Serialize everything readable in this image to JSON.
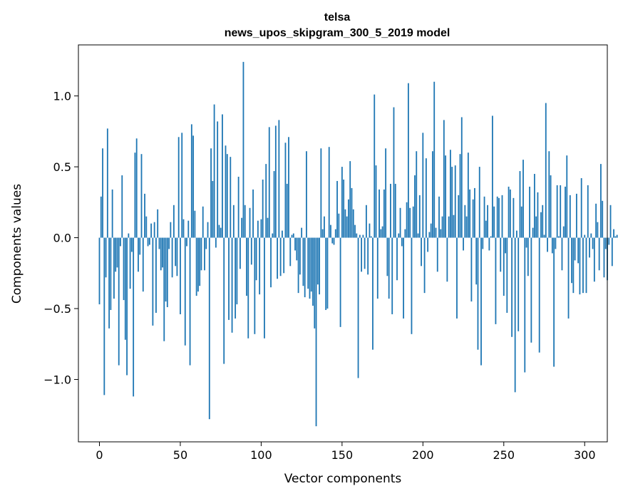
{
  "chart_data": {
    "type": "bar",
    "title": "telsa",
    "subtitle": "news_upos_skipgram_300_5_2019 model",
    "xlabel": "Vector components",
    "ylabel": "Components values",
    "xlim": [
      -13,
      314
    ],
    "ylim": [
      -1.44,
      1.36
    ],
    "xticks": [
      0,
      50,
      100,
      150,
      200,
      250,
      300
    ],
    "xtick_labels": [
      "0",
      "50",
      "100",
      "150",
      "200",
      "250",
      "300"
    ],
    "yticks": [
      -1.0,
      -0.5,
      0.0,
      0.5,
      1.0
    ],
    "ytick_labels": [
      "−1.0",
      "−0.5",
      "0.0",
      "0.5",
      "1.0"
    ],
    "bar_color": "#1f77b4",
    "values": [
      -0.47,
      0.29,
      0.63,
      -1.11,
      -0.28,
      0.77,
      -0.64,
      -0.51,
      0.34,
      -0.43,
      -0.24,
      -0.21,
      -0.9,
      -0.06,
      0.44,
      -0.44,
      -0.72,
      -0.97,
      0.03,
      -0.36,
      -0.1,
      -1.12,
      0.6,
      0.7,
      -0.24,
      -0.12,
      0.59,
      -0.38,
      0.31,
      0.15,
      -0.06,
      -0.05,
      0.1,
      -0.62,
      0.11,
      -0.53,
      0.2,
      -0.08,
      -0.23,
      -0.21,
      -0.73,
      -0.45,
      -0.49,
      -0.08,
      0.11,
      -0.28,
      0.23,
      -0.2,
      -0.27,
      0.71,
      -0.54,
      0.74,
      0.13,
      -0.76,
      -0.06,
      0.12,
      -0.9,
      0.8,
      0.72,
      0.19,
      -0.41,
      -0.38,
      -0.34,
      -0.23,
      0.22,
      -0.23,
      -0.08,
      0.11,
      -1.28,
      0.63,
      0.4,
      0.94,
      -0.07,
      0.82,
      0.09,
      0.07,
      0.87,
      -0.89,
      0.65,
      0.59,
      -0.58,
      0.57,
      -0.67,
      0.23,
      -0.57,
      -0.47,
      0.43,
      -0.22,
      0.14,
      1.24,
      0.23,
      -0.41,
      -0.71,
      0.21,
      -0.19,
      0.34,
      -0.68,
      -0.3,
      0.12,
      -0.4,
      0.13,
      0.41,
      -0.71,
      0.52,
      0.14,
      0.78,
      -0.35,
      0.03,
      0.47,
      0.79,
      -0.29,
      0.83,
      -0.27,
      0.05,
      -0.25,
      0.67,
      0.38,
      0.71,
      -0.2,
      0.02,
      0.03,
      -0.09,
      -0.16,
      -0.39,
      -0.26,
      0.07,
      -0.34,
      -0.42,
      0.61,
      -0.36,
      -0.43,
      -0.38,
      -0.48,
      -0.64,
      -1.33,
      -0.33,
      -0.4,
      0.63,
      0.06,
      0.15,
      -0.51,
      -0.5,
      0.64,
      0.09,
      -0.04,
      -0.05,
      0.06,
      0.4,
      0.17,
      -0.63,
      0.5,
      0.41,
      0.2,
      0.15,
      0.27,
      0.54,
      0.35,
      0.2,
      0.09,
      0.03,
      -0.99,
      0.02,
      -0.24,
      0.02,
      -0.22,
      0.23,
      -0.26,
      0.1,
      0.01,
      -0.79,
      1.01,
      0.51,
      -0.43,
      0.34,
      0.06,
      0.08,
      0.34,
      0.63,
      -0.27,
      -0.43,
      0.38,
      -0.54,
      0.92,
      0.38,
      -0.3,
      0.03,
      0.21,
      -0.06,
      -0.57,
      0.06,
      0.25,
      1.09,
      0.21,
      -0.68,
      0.22,
      0.44,
      0.61,
      0.03,
      0.3,
      -0.2,
      0.74,
      -0.39,
      0.56,
      -0.1,
      0.04,
      0.1,
      0.61,
      1.1,
      0.07,
      -0.24,
      0.29,
      0.06,
      0.15,
      0.83,
      0.58,
      -0.31,
      0.15,
      0.62,
      0.5,
      0.16,
      0.51,
      -0.57,
      0.3,
      0.59,
      0.85,
      -0.09,
      0.23,
      0.15,
      0.6,
      0.34,
      -0.45,
      0.27,
      0.35,
      -0.33,
      -0.79,
      0.5,
      -0.9,
      -0.08,
      0.29,
      0.12,
      0.23,
      -0.09,
      0.01,
      0.86,
      0.22,
      -0.61,
      0.29,
      0.28,
      -0.24,
      0.3,
      -0.41,
      -0.11,
      -0.53,
      0.36,
      0.34,
      -0.7,
      0.28,
      -1.09,
      0.05,
      -0.66,
      0.47,
      0.22,
      0.55,
      -0.95,
      -0.07,
      -0.27,
      0.36,
      -0.74,
      0.07,
      0.45,
      0.15,
      0.32,
      -0.81,
      0.18,
      0.23,
      0.02,
      0.95,
      -0.1,
      0.61,
      0.44,
      -0.11,
      -0.91,
      -0.08,
      0.37,
      0.01,
      0.37,
      -0.23,
      0.08,
      0.36,
      0.58,
      -0.57,
      0.3,
      -0.32,
      -0.39,
      -0.16,
      0.31,
      -0.18,
      -0.4,
      0.42,
      -0.39,
      0.02,
      -0.39,
      0.37,
      -0.14,
      0.03,
      -0.08,
      -0.31,
      0.24,
      0.11,
      -0.23,
      0.52,
      0.26,
      -0.28,
      -0.08,
      -0.3,
      -0.05,
      0.23,
      -0.2,
      0.06,
      0.01,
      0.02,
      -0.02,
      0.01
    ]
  }
}
